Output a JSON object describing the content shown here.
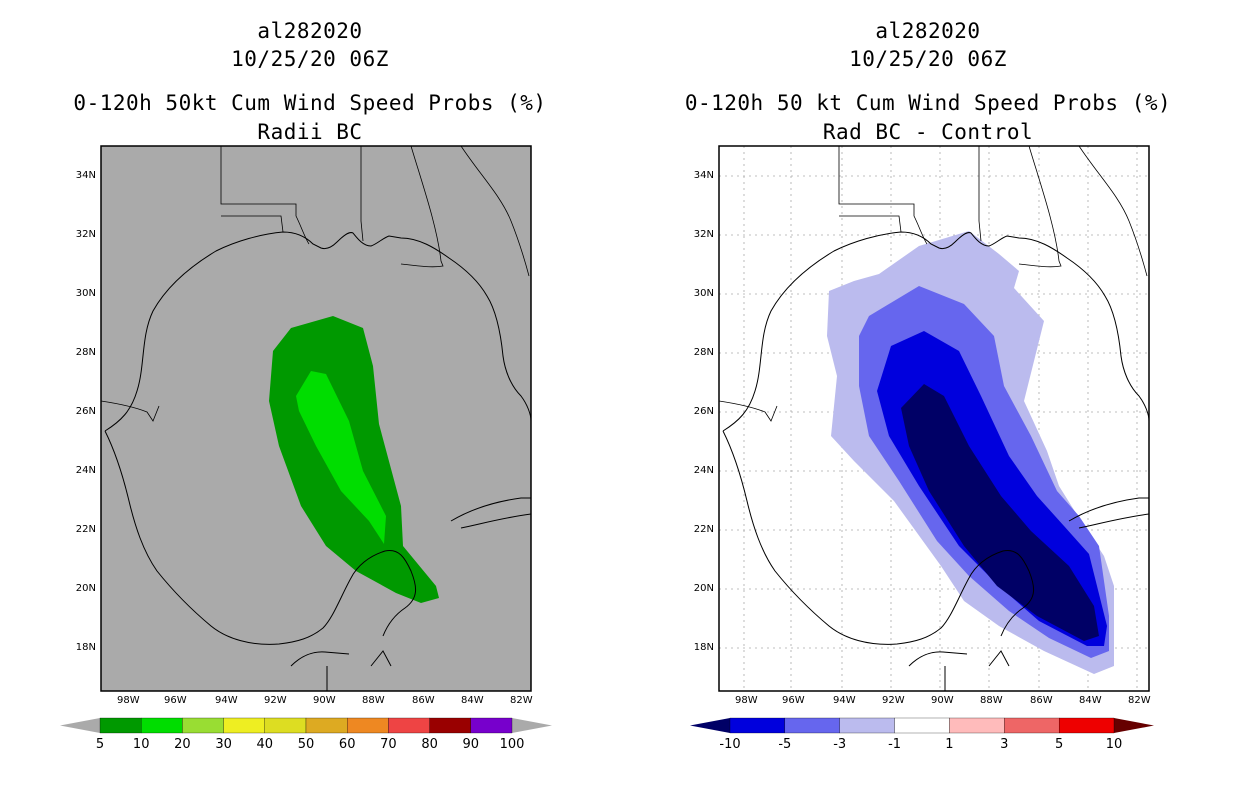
{
  "left_panel": {
    "storm_id": "al282020",
    "datetime": "10/25/20 06Z",
    "title_line1": "0-120h 50kt Cum Wind Speed Probs (%)",
    "title_line2": "Radii BC",
    "colorbar": {
      "labels": [
        "5",
        "10",
        "20",
        "30",
        "40",
        "50",
        "60",
        "70",
        "80",
        "90",
        "100"
      ],
      "colors": [
        "#009900",
        "#00dd00",
        "#99dd33",
        "#eeee22",
        "#dddd22",
        "#ddaa22",
        "#ee8822",
        "#ee4444",
        "#990000",
        "#7700cc"
      ],
      "under_color": "#aaaaaa",
      "over_color": "#aaaaaa"
    },
    "background_color": "#aaaaaa"
  },
  "right_panel": {
    "storm_id": "al282020",
    "datetime": "10/25/20 06Z",
    "title_line1": "0-120h 50 kt Cum Wind Speed Probs (%)",
    "title_line2": "Rad BC - Control",
    "colorbar": {
      "labels": [
        "-10",
        "-5",
        "-3",
        "-1",
        "1",
        "3",
        "5",
        "10"
      ],
      "colors": [
        "#0000dd",
        "#6666ee",
        "#bbbbee",
        "#ffffff",
        "#ffbbbb",
        "#ee6666",
        "#ee0000"
      ],
      "under_color": "#000066",
      "over_color": "#660000"
    },
    "background_color": "#ffffff"
  },
  "axes": {
    "lat_labels": [
      "34N",
      "32N",
      "30N",
      "28N",
      "26N",
      "24N",
      "22N",
      "20N",
      "18N"
    ],
    "lon_labels": [
      "98W",
      "96W",
      "94W",
      "92W",
      "90W",
      "88W",
      "86W",
      "84W",
      "82W"
    ]
  }
}
